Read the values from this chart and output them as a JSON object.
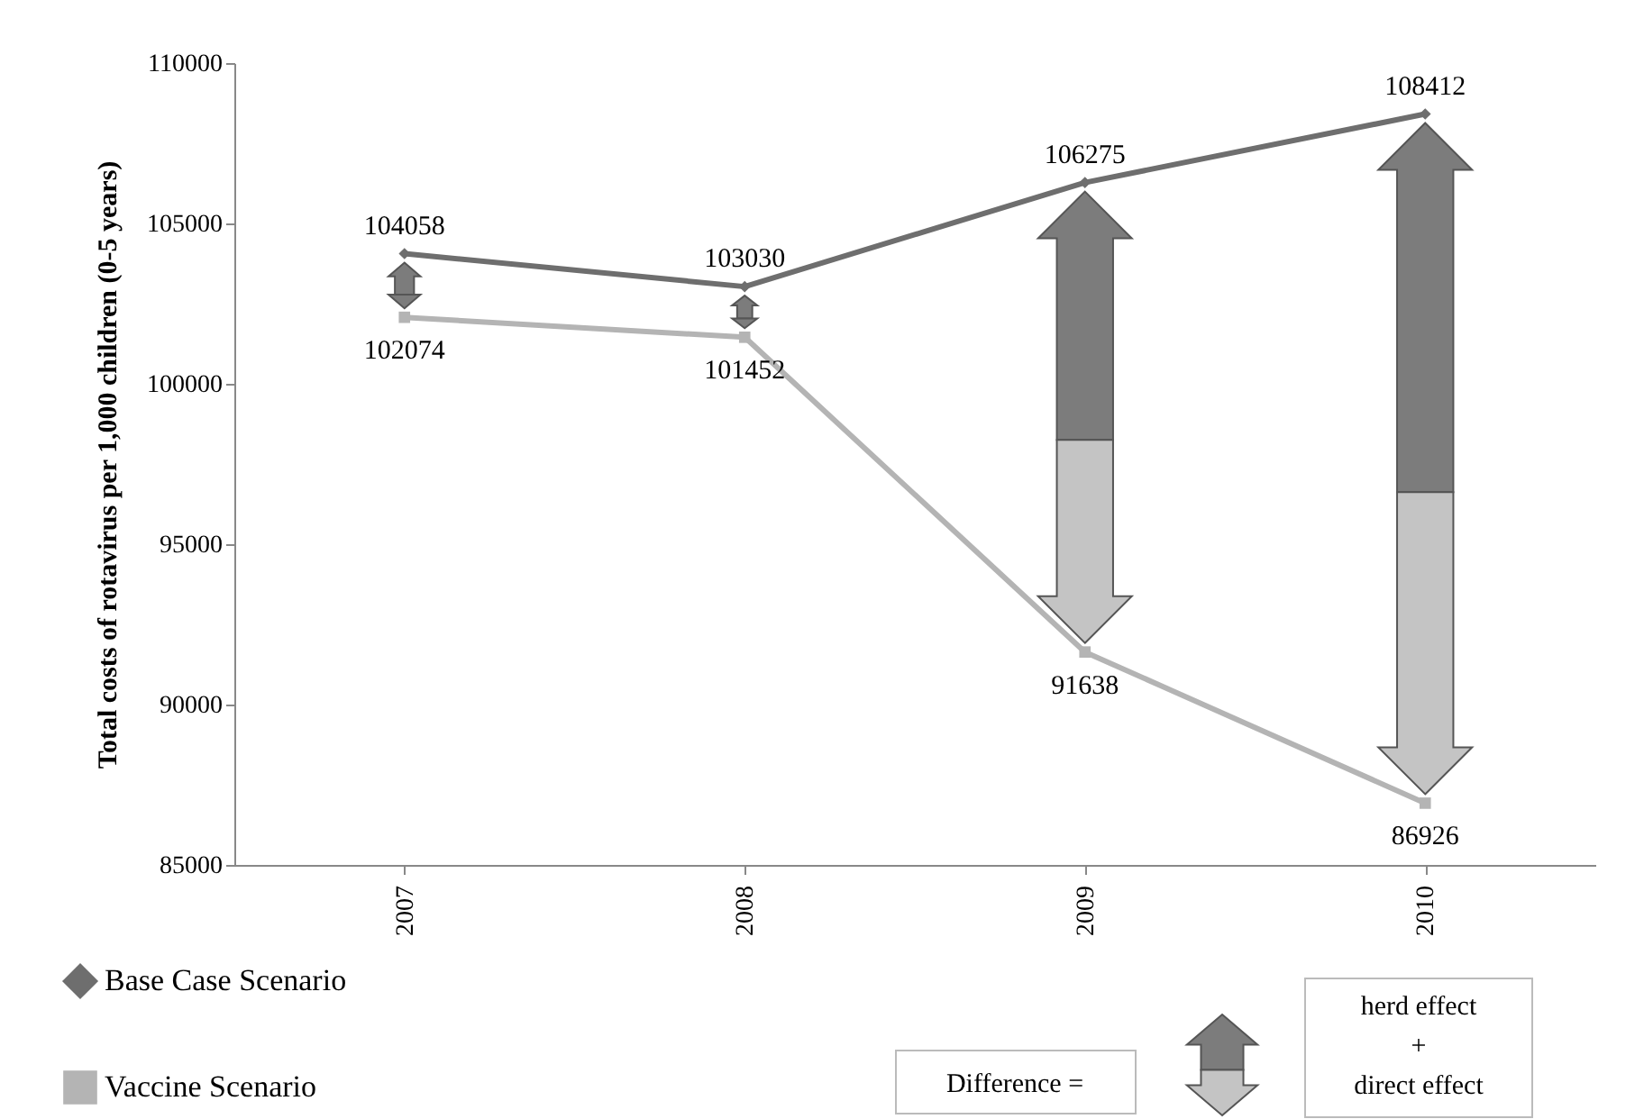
{
  "chart_data": {
    "type": "line",
    "categories": [
      "2007",
      "2008",
      "2009",
      "2010"
    ],
    "series": [
      {
        "name": "Base Case Scenario",
        "color": "#6e6e6e",
        "marker": "diamond",
        "values": [
          104058,
          103030,
          106275,
          108412
        ]
      },
      {
        "name": "Vaccine Scenario",
        "color": "#b4b4b4",
        "marker": "square",
        "values": [
          102074,
          101452,
          91638,
          86926
        ]
      }
    ],
    "ylabel": "Total costs of rotavirus per 1,000 children (0-5 years)",
    "ylim": [
      85000,
      110000
    ],
    "yticks": [
      85000,
      90000,
      95000,
      100000,
      105000,
      110000
    ],
    "grid": false,
    "legend": "bottom left",
    "data_labels": true,
    "annotations": [
      "Difference =",
      "herd effect",
      "+",
      "direct effect"
    ]
  }
}
